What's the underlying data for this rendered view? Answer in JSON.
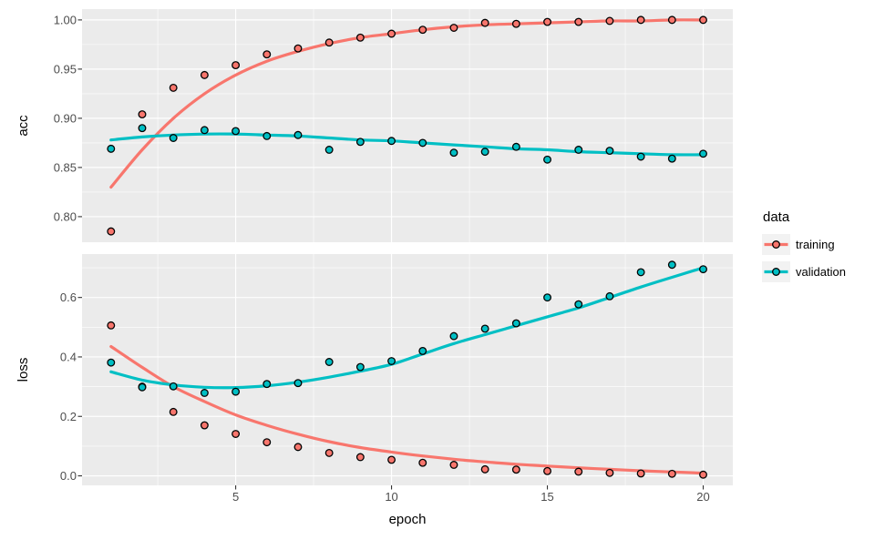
{
  "style": {
    "page_bg": "#FFFFFF",
    "panel_bg": "#EBEBEB",
    "grid_major_color": "#FFFFFF",
    "grid_minor_color": "#FFFFFF",
    "tick_mark_color": "#333333",
    "tick_label_color": "#4D4D4D",
    "axis_title_color": "#000000",
    "point_stroke_color": "#000000"
  },
  "legend": {
    "title": "data",
    "key_bg": "#F2F2F2",
    "entries": [
      {
        "label": "training",
        "color": "#F8766D"
      },
      {
        "label": "validation",
        "color": "#00BFC4"
      }
    ]
  },
  "axis": {
    "xlabel": "epoch",
    "x_tick_labels": [
      "5",
      "10",
      "15",
      "20"
    ],
    "x_ticks": [
      5,
      10,
      15,
      20
    ],
    "x_minor": [
      2.5,
      7.5,
      12.5,
      17.5
    ],
    "xlim": [
      0.07,
      20.95
    ]
  },
  "chart_data": [
    {
      "type": "scatter",
      "facet": "acc",
      "ylabel": "acc",
      "grid": true,
      "legend_position": "right",
      "ylim": [
        0.774,
        1.011
      ],
      "y_ticks": [
        0.8,
        0.85,
        0.9,
        0.95,
        1.0
      ],
      "y_tick_labels": [
        "0.80",
        "0.85",
        "0.90",
        "0.95",
        "1.00"
      ],
      "y_minor": [
        0.825,
        0.875,
        0.925,
        0.975
      ],
      "x": [
        1,
        2,
        3,
        4,
        5,
        6,
        7,
        8,
        9,
        10,
        11,
        12,
        13,
        14,
        15,
        16,
        17,
        18,
        19,
        20
      ],
      "series": [
        {
          "name": "training",
          "color": "#F8766D",
          "points": [
            0.785,
            0.904,
            0.931,
            0.944,
            0.954,
            0.965,
            0.971,
            0.977,
            0.982,
            0.986,
            0.99,
            0.992,
            0.997,
            0.996,
            0.998,
            0.998,
            0.999,
            1.0,
            1.0,
            1.0
          ],
          "smooth": [
            0.83,
            0.868,
            0.9,
            0.925,
            0.944,
            0.958,
            0.968,
            0.976,
            0.982,
            0.986,
            0.99,
            0.993,
            0.995,
            0.996,
            0.997,
            0.998,
            0.999,
            0.999,
            1.0,
            1.0
          ]
        },
        {
          "name": "validation",
          "color": "#00BFC4",
          "points": [
            0.869,
            0.89,
            0.88,
            0.888,
            0.887,
            0.882,
            0.883,
            0.868,
            0.876,
            0.877,
            0.875,
            0.865,
            0.866,
            0.871,
            0.858,
            0.868,
            0.867,
            0.861,
            0.859,
            0.864
          ],
          "smooth": [
            0.878,
            0.881,
            0.883,
            0.884,
            0.884,
            0.883,
            0.882,
            0.88,
            0.878,
            0.877,
            0.875,
            0.873,
            0.871,
            0.869,
            0.868,
            0.866,
            0.865,
            0.864,
            0.863,
            0.863
          ]
        }
      ]
    },
    {
      "type": "scatter",
      "facet": "loss",
      "ylabel": "loss",
      "grid": true,
      "legend_position": "right",
      "ylim": [
        -0.032,
        0.746
      ],
      "y_ticks": [
        0.0,
        0.2,
        0.4,
        0.6
      ],
      "y_tick_labels": [
        "0.0",
        "0.2",
        "0.4",
        "0.6"
      ],
      "y_minor": [
        0.1,
        0.3,
        0.5,
        0.7
      ],
      "x": [
        1,
        2,
        3,
        4,
        5,
        6,
        7,
        8,
        9,
        10,
        11,
        12,
        13,
        14,
        15,
        16,
        17,
        18,
        19,
        20
      ],
      "series": [
        {
          "name": "training",
          "color": "#F8766D",
          "points": [
            0.506,
            0.3,
            0.215,
            0.17,
            0.141,
            0.113,
            0.097,
            0.077,
            0.063,
            0.054,
            0.044,
            0.037,
            0.022,
            0.021,
            0.016,
            0.014,
            0.01,
            0.008,
            0.007,
            0.004
          ],
          "smooth": [
            0.435,
            0.365,
            0.3,
            0.25,
            0.205,
            0.17,
            0.14,
            0.115,
            0.095,
            0.08,
            0.067,
            0.056,
            0.047,
            0.039,
            0.033,
            0.027,
            0.022,
            0.017,
            0.013,
            0.009
          ]
        },
        {
          "name": "validation",
          "color": "#00BFC4",
          "points": [
            0.381,
            0.298,
            0.301,
            0.279,
            0.283,
            0.309,
            0.312,
            0.383,
            0.366,
            0.386,
            0.42,
            0.47,
            0.495,
            0.513,
            0.6,
            0.577,
            0.604,
            0.685,
            0.71,
            0.695
          ],
          "smooth": [
            0.35,
            0.322,
            0.306,
            0.298,
            0.297,
            0.303,
            0.315,
            0.332,
            0.352,
            0.375,
            0.41,
            0.445,
            0.475,
            0.505,
            0.535,
            0.565,
            0.6,
            0.635,
            0.668,
            0.7
          ]
        }
      ]
    }
  ]
}
